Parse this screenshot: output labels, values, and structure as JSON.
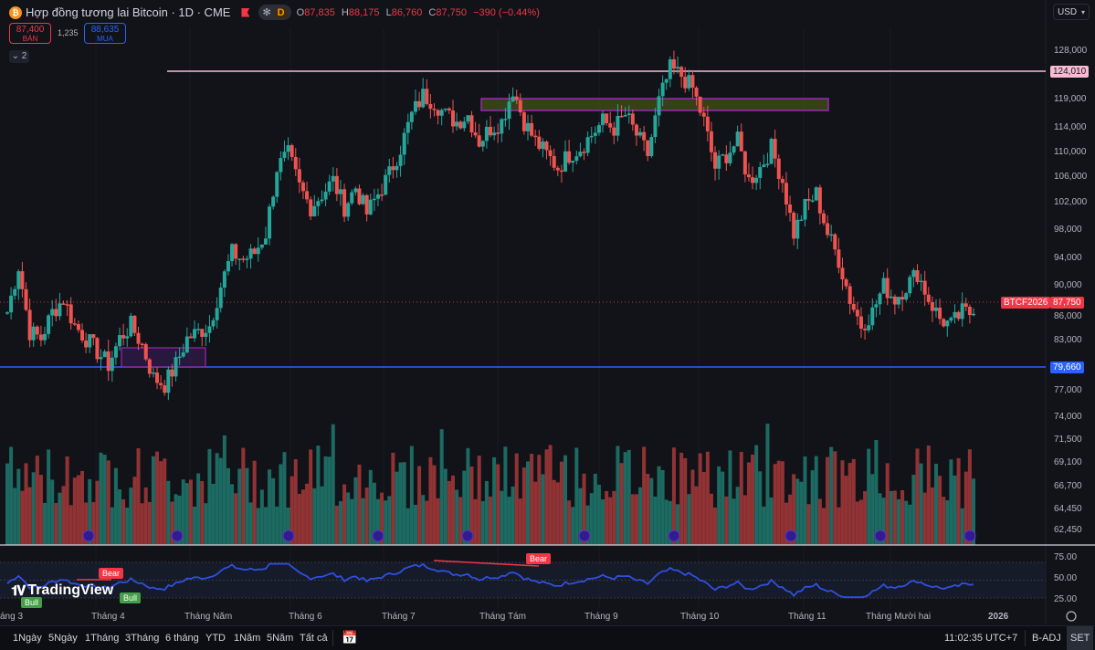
{
  "header": {
    "symbol_title": "Hợp đồng tương lai Bitcoin · 1D · CME",
    "coin_glyph": "₿",
    "session_glyph": "✻",
    "data_badge": "D",
    "ohlc": {
      "o_label": "O",
      "o": "87,835",
      "h_label": "H",
      "h": "88,175",
      "l_label": "L",
      "l": "86,760",
      "c_label": "C",
      "c": "87,750",
      "change": "−390 (−0.44%)"
    },
    "sell": {
      "price": "87,400",
      "label": "BÁN"
    },
    "spread": "1,235",
    "buy": {
      "price": "88,635",
      "label": "MUA"
    },
    "collapse_label": "⌄ 2",
    "currency": "USD"
  },
  "price_axis": {
    "labels": [
      "128,000",
      "124,010",
      "119,000",
      "114,000",
      "110,000",
      "106,000",
      "102,000",
      "98,000",
      "94,000",
      "90,000",
      "87,750",
      "86,000",
      "83,000",
      "79,660",
      "77,000",
      "74,000",
      "71,500",
      "69,100",
      "66,700",
      "64,450",
      "62,450"
    ]
  },
  "tags": {
    "resistance": "124,010",
    "current_symbol": "BTCF2026",
    "current_price": "87,750",
    "support": "79,660"
  },
  "rsi_axis": {
    "labels": [
      "75.00",
      "50.00",
      "25.00"
    ]
  },
  "time_axis": {
    "labels": [
      "áng 3",
      "Tháng 4",
      "Tháng Năm",
      "Tháng 6",
      "Tháng 7",
      "Tháng Tám",
      "Tháng 9",
      "Tháng 10",
      "Tháng 11",
      "Tháng Mười hai",
      "2026"
    ]
  },
  "signals": {
    "bear1": "Bear",
    "bear2": "Bear",
    "bull1": "Bull",
    "bull2": "Bull"
  },
  "logo": "TradingView",
  "bottom_bar": {
    "ranges": [
      "1Ngày",
      "5Ngày",
      "1Tháng",
      "3Tháng",
      "6 tháng",
      "YTD",
      "1Năm",
      "5Năm",
      "Tất cả"
    ],
    "time": "11:02:35 UTC+7",
    "adj": "B-ADJ",
    "session": "SET"
  },
  "colors": {
    "up": "#26a69a",
    "down": "#ef5350",
    "resistance": "#f8bbd0",
    "support": "#2962ff",
    "rsi": "#2f4fe0",
    "zone_box": "#9c27b0"
  },
  "chart_data": {
    "type": "candlestick",
    "title": "Hợp đồng tương lai Bitcoin · 1D · CME",
    "ylabel": "USD",
    "ylim": [
      60000,
      130000
    ],
    "horizontal_lines": [
      {
        "name": "resistance",
        "value": 124010
      },
      {
        "name": "support",
        "value": 79660
      }
    ],
    "last_price": 87750,
    "closes_approx": [
      88000,
      95000,
      85000,
      84000,
      88000,
      90000,
      86000,
      84000,
      82000,
      80000,
      84000,
      86000,
      83000,
      78000,
      77000,
      80000,
      84000,
      85000,
      86000,
      92000,
      97000,
      96000,
      97000,
      100000,
      110000,
      112000,
      107000,
      104000,
      106000,
      108000,
      104000,
      107000,
      103000,
      106000,
      109000,
      113000,
      118000,
      121000,
      120000,
      118000,
      117000,
      118000,
      114000,
      116000,
      117000,
      122000,
      117000,
      114000,
      112000,
      110000,
      112000,
      113000,
      115000,
      117000,
      116000,
      118000,
      115000,
      112000,
      120000,
      125000,
      124000,
      122000,
      117000,
      110000,
      112000,
      114000,
      108000,
      110000,
      113000,
      108000,
      100000,
      104000,
      106000,
      100000,
      96000,
      90000,
      86000,
      88000,
      92000,
      90000,
      92000,
      94000,
      90000,
      87000,
      86000,
      88000,
      87750
    ],
    "rsi": {
      "ylim": [
        0,
        100
      ],
      "levels": [
        25,
        50,
        75
      ]
    }
  }
}
